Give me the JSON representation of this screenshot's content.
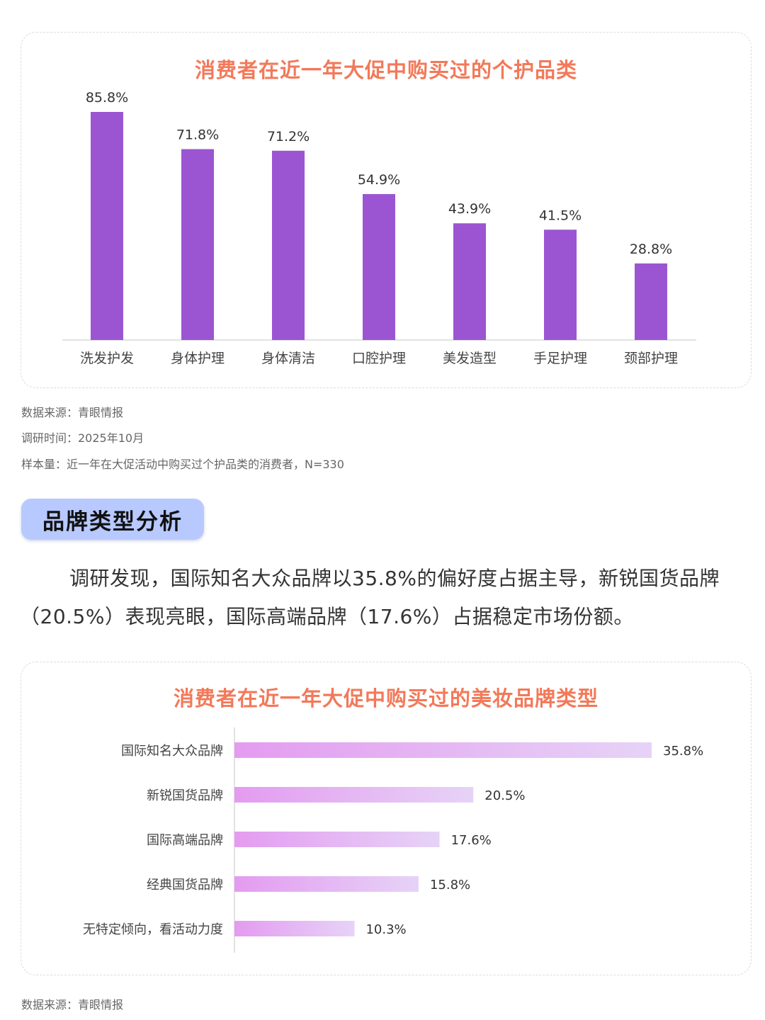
{
  "chart1": {
    "title": "消费者在近一年大促中购买过的个护品类",
    "unit_suffix": "%",
    "notes": {
      "source": "数据来源：青眼情报",
      "time": "调研时间：2025年10月",
      "sample": "样本量：近一年在大促活动中购买过个护品类的消费者，N=330"
    }
  },
  "section": {
    "heading": "品牌类型分析",
    "paragraph": "调研发现，国际知名大众品牌以35.8%的偏好度占据主导，新锐国货品牌（20.5%）表现亮眼，国际高端品牌（17.6%）占据稳定市场份额。"
  },
  "chart2": {
    "title": "消费者在近一年大促中购买过的美妆品牌类型",
    "unit_suffix": "%",
    "notes": {
      "source": "数据来源：青眼情报"
    }
  },
  "colors": {
    "bar_purple": "#9b55d2",
    "title_orange": "#f2795a",
    "hbar_start": "#e49bf0",
    "hbar_end": "#e6d3f7",
    "pill_blue": "#b8c9ff"
  },
  "chart_data": [
    {
      "type": "bar",
      "title": "消费者在近一年大促中购买过的个护品类",
      "categories": [
        "洗发护发",
        "身体护理",
        "身体清洁",
        "口腔护理",
        "美发造型",
        "手足护理",
        "颈部护理"
      ],
      "values": [
        85.8,
        71.8,
        71.2,
        54.9,
        43.9,
        41.5,
        28.8
      ],
      "labels": [
        "85.8%",
        "71.8%",
        "71.2%",
        "54.9%",
        "43.9%",
        "41.5%",
        "28.8%"
      ],
      "xlabel": "",
      "ylabel": "",
      "ylim": [
        0,
        85.8
      ],
      "grid": false,
      "legend": "none"
    },
    {
      "type": "bar",
      "orientation": "horizontal",
      "title": "消费者在近一年大促中购买过的美妆品牌类型",
      "categories": [
        "国际知名大众品牌",
        "新锐国货品牌",
        "国际高端品牌",
        "经典国货品牌",
        "无特定倾向，看活动力度"
      ],
      "values": [
        35.8,
        20.5,
        17.6,
        15.8,
        10.3
      ],
      "labels": [
        "35.8%",
        "20.5%",
        "17.6%",
        "15.8%",
        "10.3%"
      ],
      "xlabel": "",
      "ylabel": "",
      "xlim": [
        0,
        35.8
      ],
      "grid": false,
      "legend": "none"
    }
  ]
}
